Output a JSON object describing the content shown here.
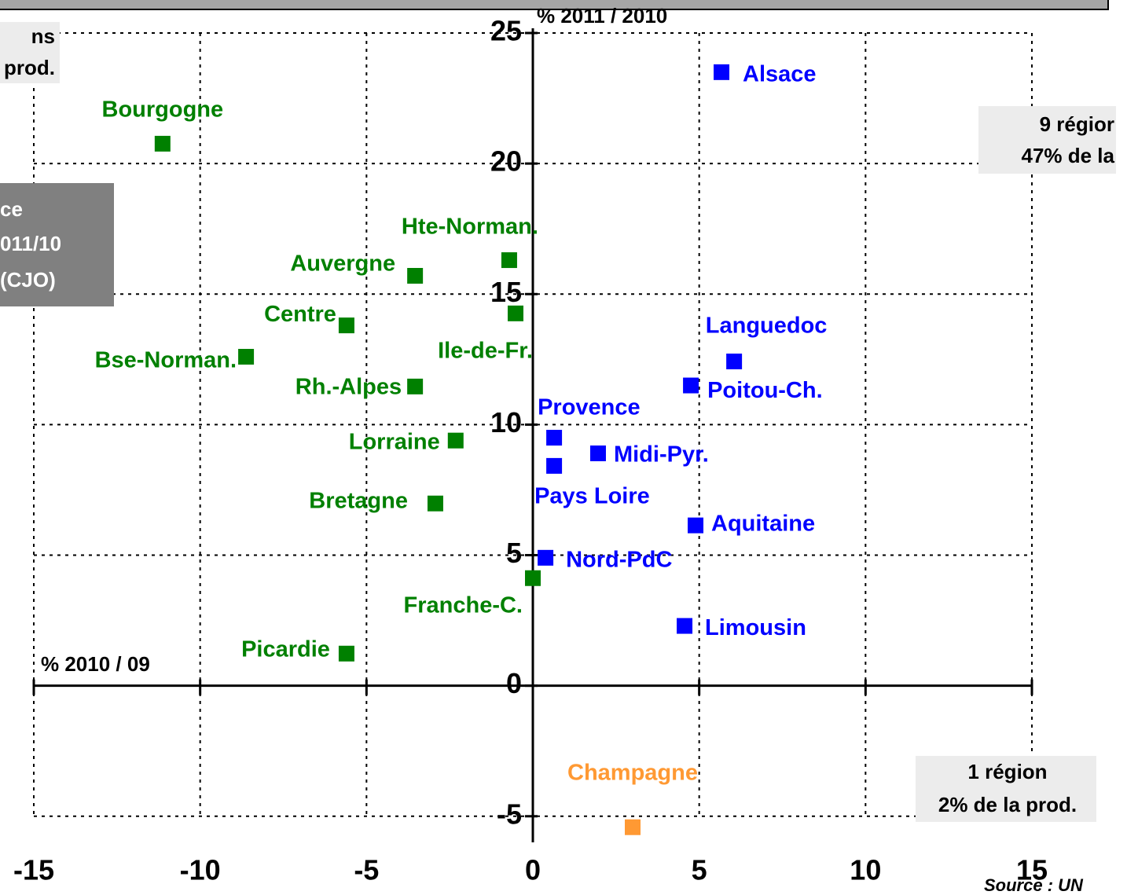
{
  "chart_data": {
    "type": "scatter",
    "x_label": "% 2010 / 09",
    "y_label": "% 2011 / 2010",
    "xlim": [
      -15,
      15
    ],
    "ylim": [
      -6,
      25
    ],
    "xticks": [
      -15,
      -10,
      -5,
      0,
      5,
      10,
      15
    ],
    "yticks": [
      -5,
      0,
      5,
      10,
      15,
      20,
      25
    ],
    "grid": true,
    "points": [
      {
        "label": "Alsace",
        "x": 5.67,
        "y": 23.5,
        "color": "#0000ff"
      },
      {
        "label": "Bourgogne",
        "x": -11.13,
        "y": 20.76,
        "color": "#008000"
      },
      {
        "label": "Hte-Norman.",
        "x": -0.71,
        "y": 16.3,
        "color": "#008000"
      },
      {
        "label": "Auvergne",
        "x": -3.54,
        "y": 15.7,
        "color": "#008000"
      },
      {
        "label": "Ile-de-Fr.",
        "x": -0.52,
        "y": 14.26,
        "color": "#008000"
      },
      {
        "label": "Centre",
        "x": -5.6,
        "y": 13.8,
        "color": "#008000"
      },
      {
        "label": "Bse-Norman.",
        "x": -8.62,
        "y": 12.6,
        "color": "#008000"
      },
      {
        "label": "Rh.-Alpes",
        "x": -3.54,
        "y": 11.46,
        "color": "#008000"
      },
      {
        "label": "Lorraine",
        "x": -2.32,
        "y": 9.39,
        "color": "#008000"
      },
      {
        "label": "Bretagne",
        "x": -2.93,
        "y": 6.98,
        "color": "#008000"
      },
      {
        "label": "Franche-C.",
        "x": 0.0,
        "y": 4.12,
        "color": "#008000"
      },
      {
        "label": "Picardie",
        "x": -5.6,
        "y": 1.23,
        "color": "#008000"
      },
      {
        "label": "Languedoc",
        "x": 6.05,
        "y": 12.42,
        "color": "#0000ff"
      },
      {
        "label": "Poitou-Ch.",
        "x": 4.75,
        "y": 11.5,
        "color": "#0000ff"
      },
      {
        "label": "Provence",
        "x": 0.64,
        "y": 9.5,
        "color": "#0000ff"
      },
      {
        "label": "Pays Loire",
        "x": 0.64,
        "y": 8.42,
        "color": "#0000ff"
      },
      {
        "label": "Midi-Pyr.",
        "x": 1.96,
        "y": 8.9,
        "color": "#0000ff"
      },
      {
        "label": "Aquitaine",
        "x": 4.89,
        "y": 6.14,
        "color": "#0000ff"
      },
      {
        "label": "Nord-PdC",
        "x": 0.38,
        "y": 4.9,
        "color": "#0000ff"
      },
      {
        "label": "Limousin",
        "x": 4.56,
        "y": 2.29,
        "color": "#0000ff"
      },
      {
        "label": "Champagne",
        "x": 3.0,
        "y": -5.42,
        "color": "#ff9933"
      }
    ],
    "boxes": [
      {
        "lines": [
          "ns",
          "prod."
        ]
      },
      {
        "lines": [
          "ce",
          "011/10",
          "(CJO)"
        ]
      },
      {
        "lines": [
          "9 régior",
          "47% de la"
        ]
      },
      {
        "lines": [
          "1 région",
          "2% de la prod."
        ]
      }
    ],
    "source": "Source : UN"
  }
}
